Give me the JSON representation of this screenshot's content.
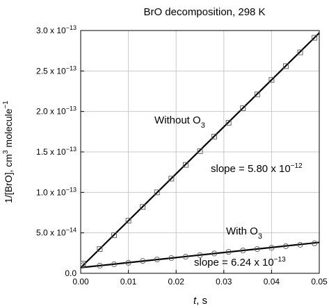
{
  "chart_data": {
    "type": "scatter",
    "title": "BrO decomposition, 298 K",
    "xlabel": {
      "italic": "t",
      "rest": ", s"
    },
    "ylabel": {
      "a": "1/[BrO], cm",
      "sup1": "3",
      "b": " molecule",
      "sup2": "−1"
    },
    "xlim": [
      0,
      0.05
    ],
    "ylim": [
      0,
      3e-13
    ],
    "grid": true,
    "x_ticks": [
      {
        "value": 0.0,
        "label": "0.00"
      },
      {
        "value": 0.01,
        "label": "0.01"
      },
      {
        "value": 0.02,
        "label": "0.02"
      },
      {
        "value": 0.03,
        "label": "0.03"
      },
      {
        "value": 0.04,
        "label": "0.04"
      },
      {
        "value": 0.05,
        "label": "0.05"
      }
    ],
    "y_ticks": [
      {
        "value": 0,
        "mant": "0.0",
        "exp": ""
      },
      {
        "value": 5e-14,
        "mant": "5.0 x 10",
        "exp": "−14"
      },
      {
        "value": 1e-13,
        "mant": "1.0 x 10",
        "exp": "−13"
      },
      {
        "value": 1.5e-13,
        "mant": "1.5 x 10",
        "exp": "−13"
      },
      {
        "value": 2e-13,
        "mant": "2.0 x 10",
        "exp": "−13"
      },
      {
        "value": 2.5e-13,
        "mant": "2.5 x 10",
        "exp": "−13"
      },
      {
        "value": 3e-13,
        "mant": "3.0 x 10",
        "exp": "−13"
      }
    ],
    "series": [
      {
        "marker": "square",
        "label": {
          "text": "Without O",
          "sub": "3"
        },
        "slope_label": {
          "text": "slope = 5.80 x 10",
          "sup": "−12"
        },
        "fit": {
          "intercept": 7e-15,
          "slope": 5.8e-12
        },
        "points": [
          [
            0.0005,
            1.2e-14
          ],
          [
            0.004,
            3e-14
          ],
          [
            0.007,
            4.7e-14
          ],
          [
            0.01,
            6.5e-14
          ],
          [
            0.013,
            8.2e-14
          ],
          [
            0.016,
            1e-13
          ],
          [
            0.019,
            1.17e-13
          ],
          [
            0.022,
            1.34e-13
          ],
          [
            0.025,
            1.51e-13
          ],
          [
            0.028,
            1.69e-13
          ],
          [
            0.031,
            1.86e-13
          ],
          [
            0.034,
            2.04e-13
          ],
          [
            0.037,
            2.21e-13
          ],
          [
            0.04,
            2.39e-13
          ],
          [
            0.043,
            2.56e-13
          ],
          [
            0.046,
            2.73e-13
          ],
          [
            0.049,
            2.91e-13
          ]
        ]
      },
      {
        "marker": "circle",
        "label": {
          "text": "With O",
          "sub": "3"
        },
        "slope_label": {
          "text": "slope = 6.24 x 10",
          "sup": "−13"
        },
        "fit": {
          "intercept": 7e-15,
          "slope": 6.24e-13
        },
        "points": [
          [
            0.0005,
            1e-14
          ],
          [
            0.004,
            9.5e-15
          ],
          [
            0.007,
            1.12e-14
          ],
          [
            0.01,
            1.3e-14
          ],
          [
            0.013,
            1.52e-14
          ],
          [
            0.016,
            1.7e-14
          ],
          [
            0.019,
            1.88e-14
          ],
          [
            0.022,
            2.05e-14
          ],
          [
            0.025,
            2.25e-14
          ],
          [
            0.028,
            2.45e-14
          ],
          [
            0.031,
            2.65e-14
          ],
          [
            0.034,
            2.82e-14
          ],
          [
            0.037,
            3e-14
          ],
          [
            0.04,
            3.15e-14
          ],
          [
            0.043,
            3.35e-14
          ],
          [
            0.046,
            3.52e-14
          ],
          [
            0.049,
            3.7e-14
          ]
        ]
      }
    ]
  }
}
